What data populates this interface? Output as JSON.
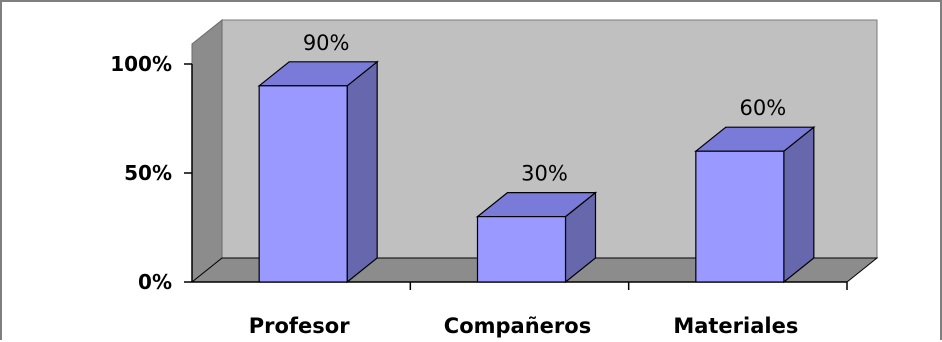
{
  "chart_data": {
    "type": "bar",
    "style": "3d-column",
    "categories": [
      "Profesor",
      "Compañeros",
      "Materiales"
    ],
    "values": [
      90,
      30,
      60
    ],
    "data_labels": [
      "90%",
      "30%",
      "60%"
    ],
    "yticks": [
      {
        "value": 0,
        "label": "0%"
      },
      {
        "value": 50,
        "label": "50%"
      },
      {
        "value": 100,
        "label": "100%"
      }
    ],
    "ylim": [
      0,
      100
    ],
    "grid": false,
    "legend": false,
    "colors": {
      "bar_front": "#9999ff",
      "bar_side": "#6767ad",
      "bar_top": "#7a7ad8",
      "wall": "#c0c0c0",
      "wall_side": "#8c8c8c",
      "floor": "#8c8c8c"
    }
  }
}
